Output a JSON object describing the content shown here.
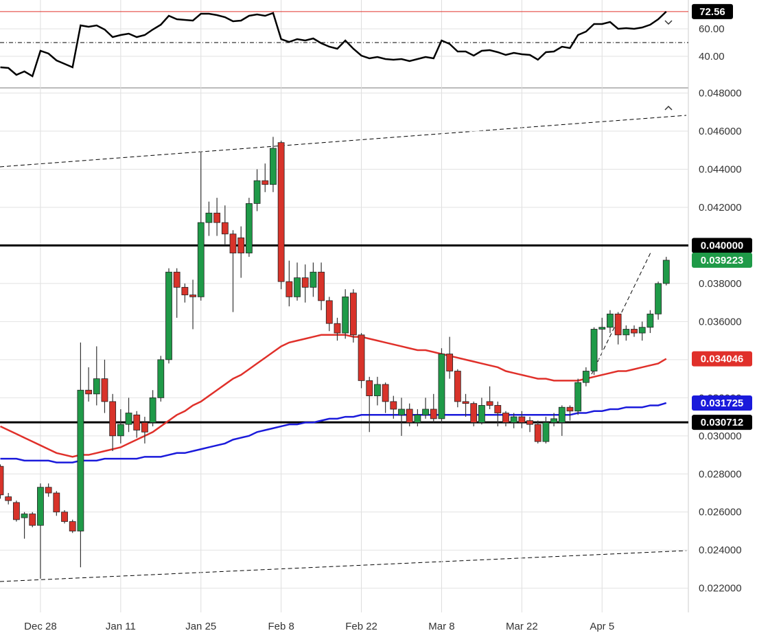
{
  "chart_data": [
    {
      "type": "candlestick",
      "categories": [
        null,
        null,
        null,
        null,
        null,
        "Dec 28",
        null,
        null,
        null,
        null,
        null,
        null,
        null,
        null,
        null,
        "Jan 11",
        null,
        null,
        null,
        null,
        null,
        null,
        null,
        null,
        null,
        "Jan 25",
        null,
        null,
        null,
        null,
        null,
        null,
        null,
        null,
        null,
        "Feb 8",
        null,
        null,
        null,
        null,
        null,
        null,
        null,
        null,
        null,
        "Feb 22",
        null,
        null,
        null,
        null,
        null,
        null,
        null,
        null,
        null,
        "Mar 8",
        null,
        null,
        null,
        null,
        null,
        null,
        null,
        null,
        null,
        "Mar 22",
        null,
        null,
        null,
        null,
        null,
        null,
        null,
        null,
        null,
        "Apr 5",
        null,
        null,
        null,
        null,
        null,
        null,
        null,
        null
      ],
      "open": [
        0.0284,
        0.0268,
        0.0265,
        0.0257,
        0.0259,
        0.0253,
        0.0273,
        0.027,
        0.026,
        0.0255,
        0.025,
        0.0324,
        0.0322,
        0.033,
        0.0318,
        0.03,
        0.0306,
        0.0311,
        0.0307,
        0.0307,
        0.032,
        0.034,
        0.0386,
        0.0378,
        0.0374,
        0.0373,
        0.0412,
        0.0417,
        0.0412,
        0.0406,
        0.0404,
        0.0396,
        0.0422,
        0.0434,
        0.0432,
        0.0454,
        0.0381,
        0.0373,
        0.0383,
        0.0378,
        0.0386,
        0.0371,
        0.0359,
        0.0354,
        0.0375,
        0.0353,
        0.0329,
        0.0321,
        0.0327,
        0.0318,
        0.0311,
        0.0314,
        0.0307,
        0.0311,
        0.0314,
        0.0309,
        0.0343,
        0.0334,
        0.0318,
        0.0317,
        0.0307,
        0.0318,
        0.0316,
        0.0312,
        0.0307,
        0.031,
        0.0308,
        0.0306,
        0.0297,
        0.0307,
        0.0307,
        0.0315,
        0.0313,
        0.0328,
        0.0334,
        0.0356,
        0.0357,
        0.0364,
        0.0353,
        0.0356,
        0.0354,
        0.0357,
        0.0364,
        0.038
      ],
      "high": [
        0.0285,
        0.027,
        0.0266,
        0.026,
        0.026,
        0.0275,
        0.0275,
        0.0271,
        0.0261,
        0.0256,
        0.0349,
        0.0336,
        0.0347,
        0.034,
        0.0322,
        0.0314,
        0.032,
        0.0313,
        0.031,
        0.0324,
        0.0342,
        0.0388,
        0.0388,
        0.038,
        0.0382,
        0.0449,
        0.0423,
        0.0425,
        0.0421,
        0.0408,
        0.041,
        0.0425,
        0.044,
        0.0443,
        0.0457,
        0.0455,
        0.0392,
        0.0391,
        0.039,
        0.0391,
        0.0391,
        0.0373,
        0.0362,
        0.0377,
        0.0377,
        0.0354,
        0.0331,
        0.0331,
        0.0328,
        0.0321,
        0.032,
        0.0317,
        0.0314,
        0.032,
        0.0322,
        0.0346,
        0.0352,
        0.0335,
        0.0322,
        0.0318,
        0.032,
        0.0326,
        0.0318,
        0.0313,
        0.0312,
        0.0313,
        0.031,
        0.0308,
        0.031,
        0.0312,
        0.0316,
        0.0316,
        0.033,
        0.0336,
        0.0357,
        0.0362,
        0.0366,
        0.0365,
        0.0358,
        0.0358,
        0.036,
        0.0366,
        0.0381,
        0.0394
      ],
      "low": [
        0.0267,
        0.0264,
        0.0255,
        0.0246,
        0.0252,
        0.0225,
        0.0268,
        0.0258,
        0.0254,
        0.0249,
        0.0231,
        0.0318,
        0.0316,
        0.0312,
        0.0292,
        0.0296,
        0.0302,
        0.0299,
        0.0296,
        0.0305,
        0.0318,
        0.0338,
        0.0362,
        0.037,
        0.0356,
        0.0371,
        0.0405,
        0.0405,
        0.04,
        0.0365,
        0.0383,
        0.0394,
        0.0418,
        0.0428,
        0.0428,
        0.0377,
        0.0368,
        0.0371,
        0.037,
        0.0373,
        0.0366,
        0.0355,
        0.035,
        0.0351,
        0.0349,
        0.0325,
        0.0302,
        0.0316,
        0.0312,
        0.0309,
        0.03,
        0.0305,
        0.0305,
        0.0309,
        0.0307,
        0.0307,
        0.033,
        0.0315,
        0.031,
        0.0305,
        0.0306,
        0.0314,
        0.0305,
        0.0305,
        0.0304,
        0.0304,
        0.0302,
        0.0296,
        0.0296,
        0.0305,
        0.03,
        0.0308,
        0.0311,
        0.0326,
        0.0332,
        0.0345,
        0.0354,
        0.0348,
        0.035,
        0.0352,
        0.035,
        0.0354,
        0.0361,
        0.0379
      ],
      "close": [
        0.0269,
        0.0266,
        0.0256,
        0.0259,
        0.0253,
        0.0273,
        0.027,
        0.026,
        0.0255,
        0.025,
        0.0324,
        0.0322,
        0.033,
        0.0318,
        0.03,
        0.0306,
        0.0312,
        0.0303,
        0.0302,
        0.032,
        0.034,
        0.0386,
        0.0378,
        0.0374,
        0.0373,
        0.0412,
        0.0417,
        0.0412,
        0.0406,
        0.0396,
        0.0396,
        0.0422,
        0.0434,
        0.0432,
        0.0451,
        0.0381,
        0.0373,
        0.0383,
        0.0378,
        0.0386,
        0.0371,
        0.0359,
        0.0354,
        0.0373,
        0.0353,
        0.0329,
        0.0321,
        0.0327,
        0.0318,
        0.0314,
        0.0314,
        0.0307,
        0.0311,
        0.0314,
        0.0309,
        0.0343,
        0.0334,
        0.0318,
        0.0317,
        0.0307,
        0.0316,
        0.0316,
        0.0312,
        0.0307,
        0.031,
        0.0307,
        0.0306,
        0.0297,
        0.0307,
        0.0309,
        0.0315,
        0.0313,
        0.0328,
        0.0334,
        0.0356,
        0.0357,
        0.0364,
        0.0353,
        0.0356,
        0.0354,
        0.0357,
        0.0364,
        0.038,
        0.039223
      ],
      "up_color": "#1f9a48",
      "down_color": "#d8332a",
      "series": [
        {
          "color": "#e0302a",
          "values": [
            0.0305,
            0.0303,
            0.0301,
            0.0299,
            0.0297,
            0.0295,
            0.0293,
            0.0291,
            0.029,
            0.0289,
            0.029,
            0.029,
            0.0291,
            0.0292,
            0.0293,
            0.0294,
            0.0296,
            0.0298,
            0.03,
            0.0302,
            0.0305,
            0.0308,
            0.0311,
            0.0313,
            0.0316,
            0.0318,
            0.0321,
            0.0324,
            0.0327,
            0.033,
            0.0332,
            0.0335,
            0.0338,
            0.0341,
            0.0344,
            0.0347,
            0.0349,
            0.035,
            0.0351,
            0.0352,
            0.0353,
            0.0353,
            0.0353,
            0.0353,
            0.0352,
            0.0352,
            0.0351,
            0.035,
            0.0349,
            0.0348,
            0.0347,
            0.0346,
            0.0345,
            0.0345,
            0.0344,
            0.0343,
            0.0342,
            0.0341,
            0.034,
            0.0339,
            0.0338,
            0.0337,
            0.0336,
            0.0334,
            0.0333,
            0.0332,
            0.0331,
            0.033,
            0.033,
            0.0329,
            0.0329,
            0.0329,
            0.0329,
            0.033,
            0.0331,
            0.0332,
            0.0333,
            0.0334,
            0.0334,
            0.0335,
            0.0336,
            0.0337,
            0.0338,
            0.034046
          ]
        },
        {
          "color": "#1a1adb",
          "values": [
            0.0288,
            0.0288,
            0.0288,
            0.0287,
            0.0287,
            0.0287,
            0.0287,
            0.0286,
            0.0286,
            0.0286,
            0.0287,
            0.0287,
            0.0287,
            0.0288,
            0.0288,
            0.0288,
            0.0288,
            0.0288,
            0.0289,
            0.0289,
            0.0289,
            0.029,
            0.0291,
            0.0291,
            0.0292,
            0.0293,
            0.0294,
            0.0295,
            0.0296,
            0.0298,
            0.0299,
            0.03,
            0.0302,
            0.0303,
            0.0304,
            0.0305,
            0.0306,
            0.0306,
            0.0307,
            0.0307,
            0.0308,
            0.0309,
            0.0309,
            0.031,
            0.031,
            0.0311,
            0.0311,
            0.0311,
            0.0311,
            0.0311,
            0.0311,
            0.0311,
            0.0311,
            0.0311,
            0.0311,
            0.0311,
            0.0311,
            0.0311,
            0.0311,
            0.0311,
            0.0311,
            0.0311,
            0.0311,
            0.0311,
            0.0311,
            0.0311,
            0.0311,
            0.0311,
            0.0311,
            0.0311,
            0.0311,
            0.0311,
            0.0312,
            0.0312,
            0.0313,
            0.0313,
            0.0314,
            0.0314,
            0.0315,
            0.0315,
            0.0315,
            0.0316,
            0.0316,
            0.031725
          ]
        }
      ],
      "levels": [
        {
          "value": 0.04,
          "label": "0.040000"
        },
        0.030712
      ],
      "ylim": [
        0.0208,
        0.0482
      ],
      "yticks": [
        {
          "value": 0.048,
          "label": "0.048000"
        },
        {
          "value": 0.046,
          "label": "0.046000"
        },
        {
          "value": 0.044,
          "label": "0.044000"
        },
        {
          "value": 0.042,
          "label": "0.042000"
        },
        {
          "value": 0.04,
          "label": "0.040000"
        },
        {
          "value": 0.038,
          "label": "0.038000"
        },
        {
          "value": 0.036,
          "label": "0.036000"
        },
        {
          "value": 0.034,
          "label": "0.034000"
        },
        {
          "value": 0.032,
          "label": "0.032000"
        },
        {
          "value": 0.03,
          "label": "0.030000"
        },
        {
          "value": 0.028,
          "label": "0.028000"
        },
        {
          "value": 0.026,
          "label": "0.026000"
        },
        {
          "value": 0.024,
          "label": "0.024000"
        },
        {
          "value": 0.022,
          "label": "0.022000"
        }
      ],
      "grid": true
    },
    {
      "type": "line",
      "color": "#000000",
      "values": [
        32,
        31.5,
        26.5,
        29,
        25.5,
        44,
        42,
        37,
        34.5,
        32,
        62.5,
        61.5,
        62.5,
        59.5,
        54,
        55.5,
        56.5,
        54,
        55.5,
        59.5,
        63,
        69.5,
        67,
        66.5,
        66,
        71,
        71,
        70,
        68.5,
        65.5,
        66,
        69.5,
        70.5,
        69.5,
        71.5,
        52.5,
        50.5,
        52.5,
        51.5,
        53,
        49.5,
        47,
        45.5,
        51.5,
        45.5,
        40.5,
        38.5,
        39.5,
        38,
        37.5,
        38,
        36.5,
        38,
        39.5,
        38.5,
        51.5,
        49,
        43.5,
        43.5,
        40.5,
        44,
        44.5,
        43,
        41,
        42.5,
        41.5,
        41,
        37.5,
        43,
        43.5,
        47,
        46,
        55.5,
        58,
        63.5,
        63.5,
        65,
        60,
        60.5,
        60,
        61,
        63,
        67,
        72.56
      ],
      "level": 50,
      "ylim": [
        17.5,
        76
      ],
      "yticks": [
        {
          "value": 60,
          "label": "60.00"
        },
        {
          "value": 40,
          "label": "40.00"
        }
      ],
      "grid": true
    }
  ]
}
